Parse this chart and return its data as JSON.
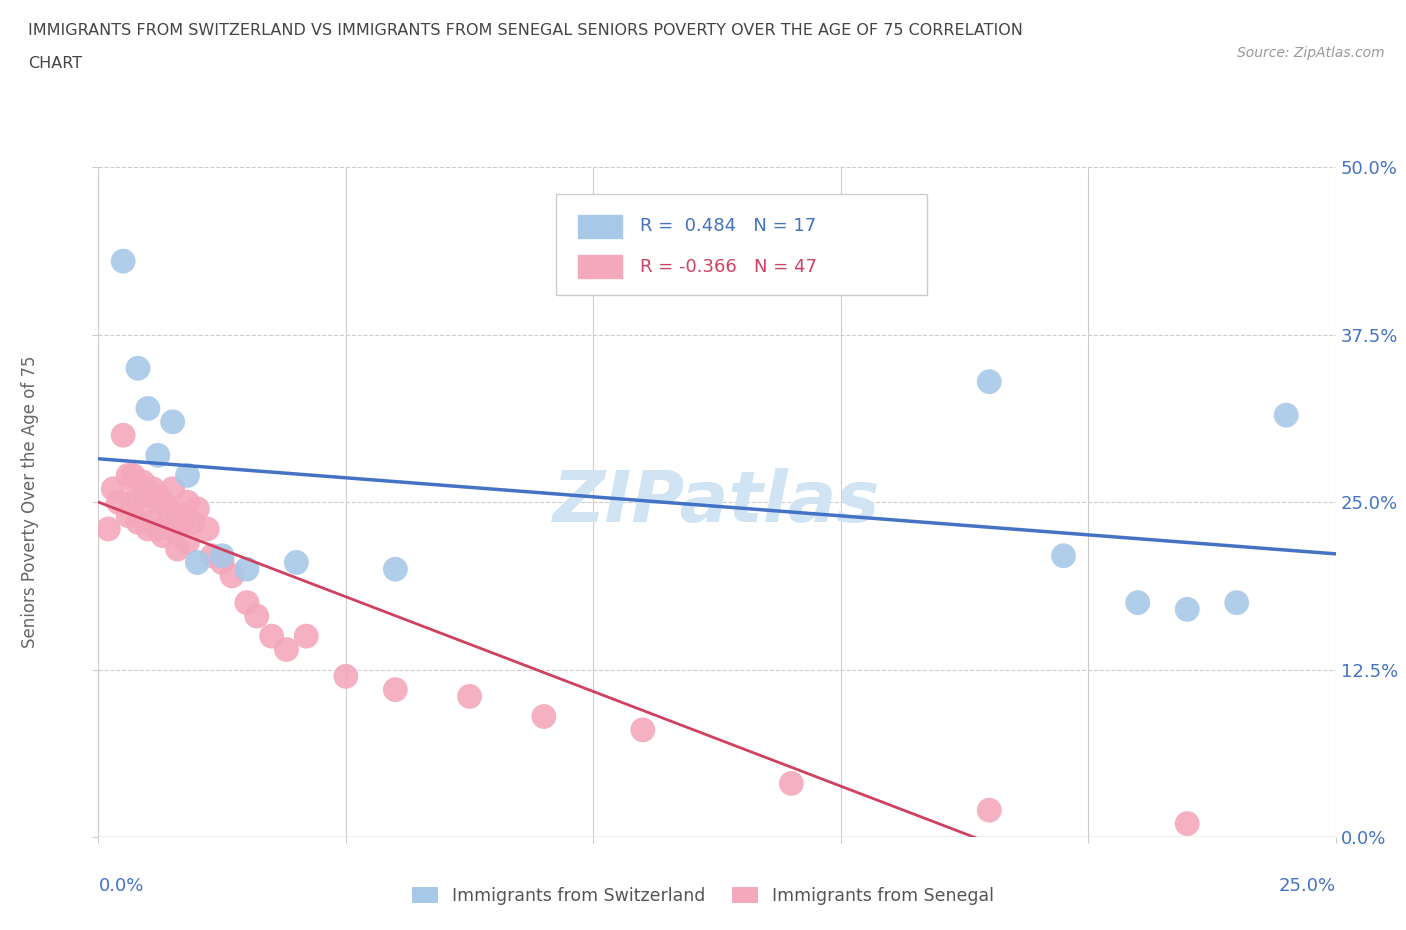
{
  "title_line1": "IMMIGRANTS FROM SWITZERLAND VS IMMIGRANTS FROM SENEGAL SENIORS POVERTY OVER THE AGE OF 75 CORRELATION",
  "title_line2": "CHART",
  "source": "Source: ZipAtlas.com",
  "ylabel": "Seniors Poverty Over the Age of 75",
  "ytick_labels": [
    "0.0%",
    "12.5%",
    "25.0%",
    "37.5%",
    "50.0%"
  ],
  "ytick_values": [
    0.0,
    0.125,
    0.25,
    0.375,
    0.5
  ],
  "xtick_values": [
    0.0,
    0.05,
    0.1,
    0.15,
    0.2,
    0.25
  ],
  "xlim": [
    0.0,
    0.25
  ],
  "ylim": [
    0.0,
    0.5
  ],
  "r_switzerland": 0.484,
  "n_switzerland": 17,
  "r_senegal": -0.366,
  "n_senegal": 47,
  "color_switzerland": "#a8c8e8",
  "color_senegal": "#f4a8bc",
  "line_color_switzerland": "#4472c4",
  "line_color_senegal": "#d04060",
  "watermark_color": "#d0e4f4",
  "background_color": "#ffffff",
  "switzerland_x": [
    0.005,
    0.008,
    0.01,
    0.012,
    0.015,
    0.018,
    0.02,
    0.025,
    0.03,
    0.04,
    0.06,
    0.18,
    0.195,
    0.21,
    0.22,
    0.23,
    0.24
  ],
  "switzerland_y": [
    0.43,
    0.35,
    0.32,
    0.285,
    0.31,
    0.27,
    0.205,
    0.21,
    0.2,
    0.205,
    0.2,
    0.34,
    0.21,
    0.175,
    0.17,
    0.175,
    0.315
  ],
  "senegal_x": [
    0.002,
    0.003,
    0.004,
    0.005,
    0.006,
    0.006,
    0.007,
    0.007,
    0.008,
    0.008,
    0.009,
    0.009,
    0.01,
    0.01,
    0.011,
    0.011,
    0.012,
    0.012,
    0.013,
    0.013,
    0.014,
    0.015,
    0.015,
    0.016,
    0.016,
    0.017,
    0.018,
    0.018,
    0.019,
    0.02,
    0.022,
    0.023,
    0.025,
    0.027,
    0.03,
    0.032,
    0.035,
    0.038,
    0.042,
    0.05,
    0.06,
    0.075,
    0.09,
    0.11,
    0.14,
    0.18,
    0.22
  ],
  "senegal_y": [
    0.23,
    0.26,
    0.25,
    0.3,
    0.27,
    0.24,
    0.27,
    0.25,
    0.26,
    0.235,
    0.265,
    0.245,
    0.255,
    0.23,
    0.26,
    0.235,
    0.255,
    0.23,
    0.25,
    0.225,
    0.245,
    0.26,
    0.23,
    0.24,
    0.215,
    0.235,
    0.25,
    0.22,
    0.235,
    0.245,
    0.23,
    0.21,
    0.205,
    0.195,
    0.175,
    0.165,
    0.15,
    0.14,
    0.15,
    0.12,
    0.11,
    0.105,
    0.09,
    0.08,
    0.04,
    0.02,
    0.01
  ]
}
